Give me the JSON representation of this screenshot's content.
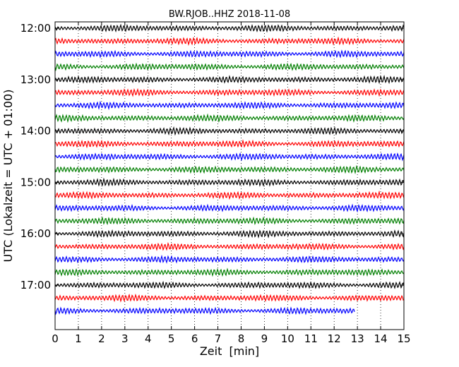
{
  "chart_data": {
    "type": "line",
    "title": "BW.RJOB..HHZ 2018-11-08",
    "xlabel": "Zeit  [min]",
    "ylabel": "UTC (Lokalzeit = UTC + 01:00)",
    "xlim": [
      0,
      15
    ],
    "x_ticks": [
      "0",
      "1",
      "2",
      "3",
      "4",
      "5",
      "6",
      "7",
      "8",
      "9",
      "10",
      "11",
      "12",
      "13",
      "14",
      "15"
    ],
    "y_ticks": [
      {
        "label": "12:00",
        "trace": 0
      },
      {
        "label": "13:00",
        "trace": 4
      },
      {
        "label": "14:00",
        "trace": 8
      },
      {
        "label": "15:00",
        "trace": 12
      },
      {
        "label": "16:00",
        "trace": 16
      },
      {
        "label": "17:00",
        "trace": 20
      }
    ],
    "trace_interval_minutes": 15,
    "start_time": "12:00",
    "colors": [
      "#000000",
      "#ff0000",
      "#0000ff",
      "#007f00"
    ],
    "grid": "vertical-dotted",
    "traces": [
      {
        "start": "12:00",
        "end_minute": 15
      },
      {
        "start": "12:15",
        "end_minute": 15
      },
      {
        "start": "12:30",
        "end_minute": 15
      },
      {
        "start": "12:45",
        "end_minute": 15
      },
      {
        "start": "13:00",
        "end_minute": 15
      },
      {
        "start": "13:15",
        "end_minute": 15
      },
      {
        "start": "13:30",
        "end_minute": 15
      },
      {
        "start": "13:45",
        "end_minute": 15
      },
      {
        "start": "14:00",
        "end_minute": 15
      },
      {
        "start": "14:15",
        "end_minute": 15
      },
      {
        "start": "14:30",
        "end_minute": 15
      },
      {
        "start": "14:45",
        "end_minute": 15
      },
      {
        "start": "15:00",
        "end_minute": 15
      },
      {
        "start": "15:15",
        "end_minute": 15
      },
      {
        "start": "15:30",
        "end_minute": 15
      },
      {
        "start": "15:45",
        "end_minute": 15
      },
      {
        "start": "16:00",
        "end_minute": 15
      },
      {
        "start": "16:15",
        "end_minute": 15
      },
      {
        "start": "16:30",
        "end_minute": 15
      },
      {
        "start": "16:45",
        "end_minute": 15
      },
      {
        "start": "17:00",
        "end_minute": 15
      },
      {
        "start": "17:15",
        "end_minute": 15
      },
      {
        "start": "17:30",
        "end_minute": 12.9
      }
    ]
  }
}
